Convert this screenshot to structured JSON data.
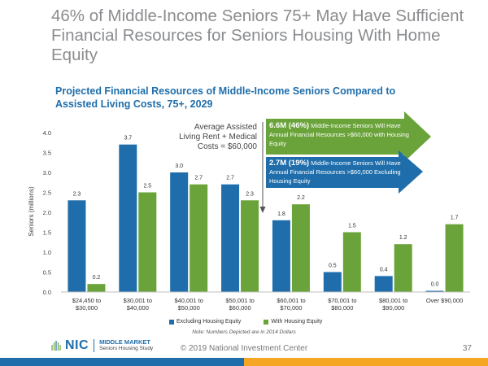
{
  "slide": {
    "title": "46% of Middle-Income Seniors 75+ May Have Sufficient Financial Resources for Seniors Housing With Home Equity",
    "footer": "© 2019 National Investment Center",
    "page_number": "37"
  },
  "annotation": {
    "avg_cost_label": "Average Assisted Living Rent + Medical Costs = $60,000",
    "arrow1_bold": "6.6M (46%)",
    "arrow1_text": " Middle-Income Seniors Will Have Annual Financial Resources >$60,000 with Housing Equity",
    "arrow2_bold": "2.7M (19%)",
    "arrow2_text": " Middle-Income Seniors Will Have Annual Financial Resources >$60,000 Excluding Housing Equity"
  },
  "logo": {
    "name": "NIC",
    "line1": "MIDDLE MARKET",
    "line2": "Seniors Housing Study"
  },
  "colors": {
    "excluding": "#1f6eab",
    "with": "#6aa339",
    "arrow_green": "#6aa339",
    "arrow_blue": "#1f6eab"
  },
  "chart_data": {
    "type": "bar",
    "title": "Projected Financial Resources of Middle-Income Seniors Compared to Assisted Living Costs, 75+, 2029",
    "ylabel": "Seniors (millions)",
    "xlabel": "",
    "ylim": [
      0,
      4.0
    ],
    "yticks": [
      "0.0",
      "0.5",
      "1.0",
      "1.5",
      "2.0",
      "2.5",
      "3.0",
      "3.5",
      "4.0"
    ],
    "categories": [
      [
        "$24,450 to",
        "$30,000"
      ],
      [
        "$30,001 to",
        "$40,000"
      ],
      [
        "$40,001 to",
        "$50,000"
      ],
      [
        "$50,001 to",
        "$60,000"
      ],
      [
        "$60,001 to",
        "$70,000"
      ],
      [
        "$70,001 to",
        "$80,000"
      ],
      [
        "$80,001 to",
        "$90,000"
      ],
      [
        "Over $90,000"
      ]
    ],
    "series": [
      {
        "name": "Excluding Housing Equity",
        "values": [
          2.3,
          3.7,
          3.0,
          2.7,
          1.8,
          0.5,
          0.4,
          0.03
        ],
        "labels": [
          "2.3",
          "3.7",
          "3.0",
          "2.7",
          "1.8",
          "0.5",
          "0.4",
          "0.0"
        ]
      },
      {
        "name": "With Housing Equity",
        "values": [
          0.2,
          2.5,
          2.7,
          2.3,
          2.2,
          1.5,
          1.2,
          1.7
        ],
        "labels": [
          "0.2",
          "2.5",
          "2.7",
          "2.3",
          "2.2",
          "1.5",
          "1.2",
          "1.7"
        ]
      }
    ],
    "grid": false,
    "legend_position": "bottom",
    "note": "Note: Numbers Depicted are in 2014 Dollars"
  }
}
